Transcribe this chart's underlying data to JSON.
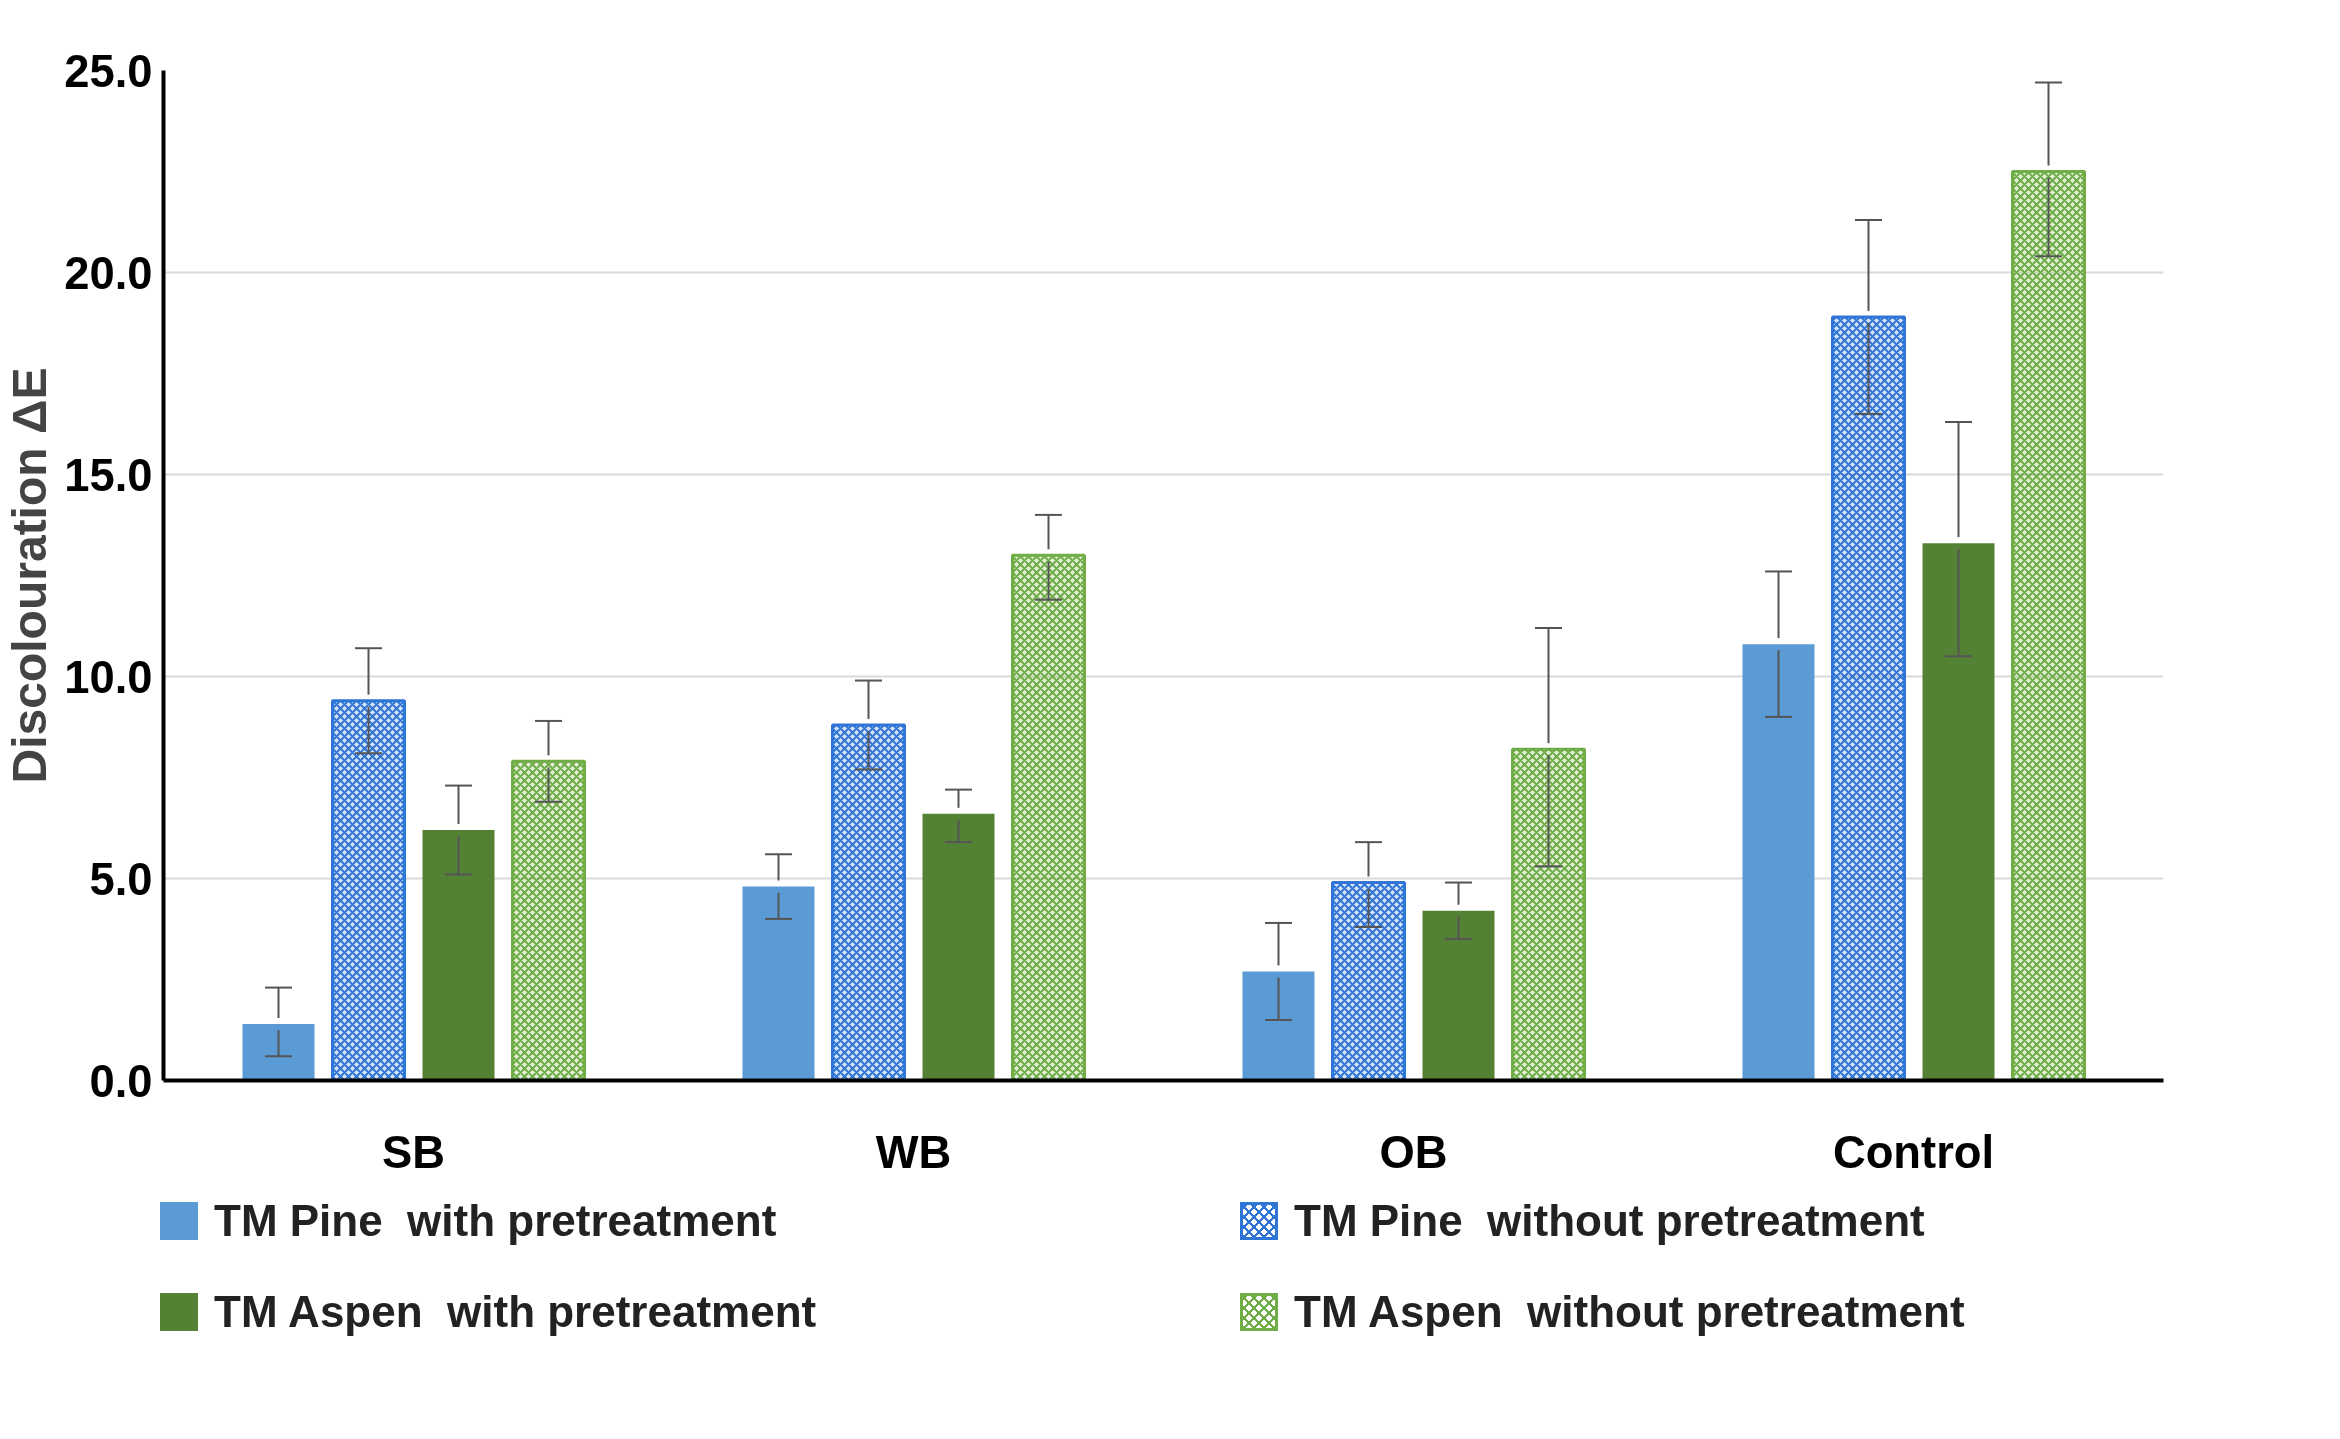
{
  "chart_data": {
    "type": "bar",
    "ylabel": "Discolouration ΔE",
    "categories": [
      "SB",
      "WB",
      "OB",
      "Control"
    ],
    "series": [
      {
        "name": "TM Pine  with pretreatment",
        "color": "#5b9bd5",
        "values": [
          1.4,
          4.8,
          2.7,
          10.8
        ],
        "errors": [
          [
            0.6,
            2.3
          ],
          [
            4.0,
            5.6
          ],
          [
            1.5,
            3.9
          ],
          [
            9.0,
            12.6
          ]
        ]
      },
      {
        "name": "TM Pine  without pretreatment",
        "color": "#2e75d6",
        "values": [
          9.4,
          8.8,
          4.9,
          18.9
        ],
        "errors": [
          [
            8.1,
            10.7
          ],
          [
            7.7,
            9.9
          ],
          [
            3.8,
            5.9
          ],
          [
            16.5,
            21.3
          ]
        ]
      },
      {
        "name": "TM Aspen  with pretreatment",
        "color": "#548235",
        "values": [
          6.2,
          6.6,
          4.2,
          13.3
        ],
        "errors": [
          [
            5.1,
            7.3
          ],
          [
            5.9,
            7.2
          ],
          [
            3.5,
            4.9
          ],
          [
            10.5,
            16.3
          ]
        ]
      },
      {
        "name": "TM Aspen  without pretreatment",
        "color": "#70ad47",
        "values": [
          7.9,
          13.0,
          8.2,
          22.5
        ],
        "errors": [
          [
            6.9,
            8.9
          ],
          [
            11.9,
            14.0
          ],
          [
            5.3,
            11.2
          ],
          [
            20.4,
            24.7
          ]
        ]
      }
    ],
    "ylim": [
      0,
      25
    ],
    "yticks": [
      {
        "value": 0,
        "label": "0.0"
      },
      {
        "value": 5,
        "label": "5.0"
      },
      {
        "value": 10,
        "label": "10.0"
      },
      {
        "value": 15,
        "label": "15.0"
      },
      {
        "value": 20,
        "label": "20.0"
      },
      {
        "value": 25,
        "label": "25.0"
      }
    ],
    "grid": "y",
    "legend": "bottom"
  }
}
